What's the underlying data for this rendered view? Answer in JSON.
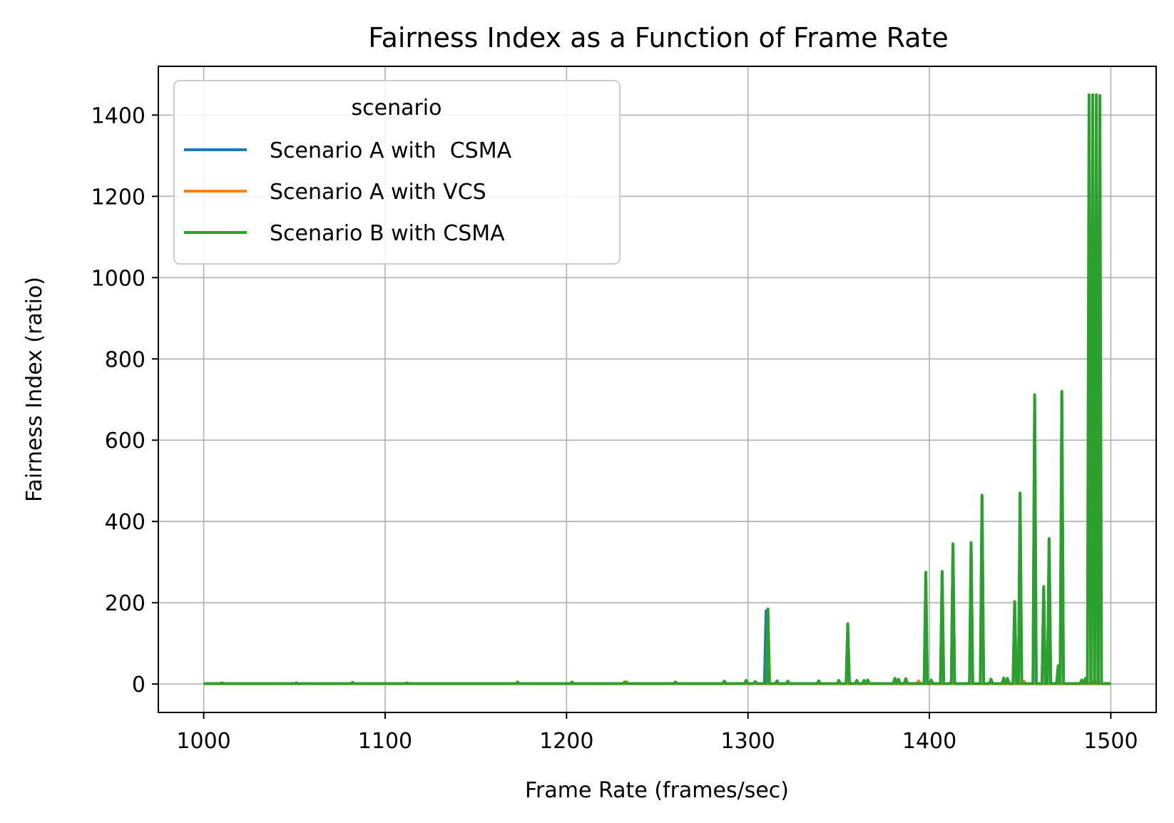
{
  "chart_data": {
    "type": "line",
    "title": "Fairness Index as a Function of Frame Rate",
    "xlabel": "Frame Rate (frames/sec)",
    "ylabel": "Fairness Index (ratio)",
    "xlim": [
      975,
      1525
    ],
    "ylim": [
      -70,
      1520
    ],
    "xticks": [
      1000,
      1100,
      1200,
      1300,
      1400,
      1500
    ],
    "yticks": [
      0,
      200,
      400,
      600,
      800,
      1000,
      1200,
      1400
    ],
    "grid": true,
    "legend": {
      "title": "scenario",
      "placement": "upper-left",
      "entries": [
        "Scenario A with  CSMA",
        "Scenario A with VCS",
        "Scenario B with CSMA"
      ]
    },
    "series": [
      {
        "name": "Scenario A with  CSMA",
        "color": "#1f77b4",
        "baseline": 1,
        "spikes": [
          {
            "x": 1310,
            "y": 180
          },
          {
            "x": 1355,
            "y": 145
          },
          {
            "x": 1398,
            "y": 270
          },
          {
            "x": 1407,
            "y": 272
          },
          {
            "x": 1413,
            "y": 340
          },
          {
            "x": 1423,
            "y": 345
          },
          {
            "x": 1429,
            "y": 460
          },
          {
            "x": 1447,
            "y": 200
          },
          {
            "x": 1450,
            "y": 465
          },
          {
            "x": 1458,
            "y": 705
          },
          {
            "x": 1463,
            "y": 238
          },
          {
            "x": 1466,
            "y": 355
          },
          {
            "x": 1471,
            "y": 40
          },
          {
            "x": 1473,
            "y": 715
          }
        ]
      },
      {
        "name": "Scenario A with VCS",
        "color": "#ff7f0e",
        "baseline": 0.5,
        "spikes": [
          {
            "x": 1233,
            "y": 6
          },
          {
            "x": 1322,
            "y": 5
          },
          {
            "x": 1394,
            "y": 8
          },
          {
            "x": 1412,
            "y": 6
          },
          {
            "x": 1452,
            "y": 7
          },
          {
            "x": 1491,
            "y": 10
          }
        ]
      },
      {
        "name": "Scenario B with CSMA",
        "color": "#2ca02c",
        "baseline": 1,
        "spikes": [
          {
            "x": 1010,
            "y": 3
          },
          {
            "x": 1051,
            "y": 3
          },
          {
            "x": 1082,
            "y": 4
          },
          {
            "x": 1112,
            "y": 3
          },
          {
            "x": 1173,
            "y": 5
          },
          {
            "x": 1203,
            "y": 5
          },
          {
            "x": 1232,
            "y": 5
          },
          {
            "x": 1260,
            "y": 5
          },
          {
            "x": 1287,
            "y": 7
          },
          {
            "x": 1299,
            "y": 9
          },
          {
            "x": 1304,
            "y": 6
          },
          {
            "x": 1311,
            "y": 185
          },
          {
            "x": 1316,
            "y": 8
          },
          {
            "x": 1322,
            "y": 7
          },
          {
            "x": 1339,
            "y": 8
          },
          {
            "x": 1350,
            "y": 9
          },
          {
            "x": 1355,
            "y": 148
          },
          {
            "x": 1360,
            "y": 9
          },
          {
            "x": 1364,
            "y": 9
          },
          {
            "x": 1366,
            "y": 10
          },
          {
            "x": 1381,
            "y": 14
          },
          {
            "x": 1383,
            "y": 12
          },
          {
            "x": 1387,
            "y": 13
          },
          {
            "x": 1398,
            "y": 275
          },
          {
            "x": 1401,
            "y": 10
          },
          {
            "x": 1407,
            "y": 277
          },
          {
            "x": 1413,
            "y": 345
          },
          {
            "x": 1423,
            "y": 348
          },
          {
            "x": 1429,
            "y": 465
          },
          {
            "x": 1434,
            "y": 12
          },
          {
            "x": 1441,
            "y": 15
          },
          {
            "x": 1443,
            "y": 14
          },
          {
            "x": 1447,
            "y": 203
          },
          {
            "x": 1450,
            "y": 470
          },
          {
            "x": 1458,
            "y": 712
          },
          {
            "x": 1463,
            "y": 240
          },
          {
            "x": 1466,
            "y": 358
          },
          {
            "x": 1471,
            "y": 45
          },
          {
            "x": 1473,
            "y": 720
          },
          {
            "x": 1484,
            "y": 10
          },
          {
            "x": 1486,
            "y": 14
          },
          {
            "x": 1488,
            "y": 1450
          },
          {
            "x": 1490,
            "y": 1450
          },
          {
            "x": 1492,
            "y": 1450
          },
          {
            "x": 1494,
            "y": 1448
          }
        ]
      }
    ],
    "x_range": [
      1000,
      1500
    ]
  }
}
